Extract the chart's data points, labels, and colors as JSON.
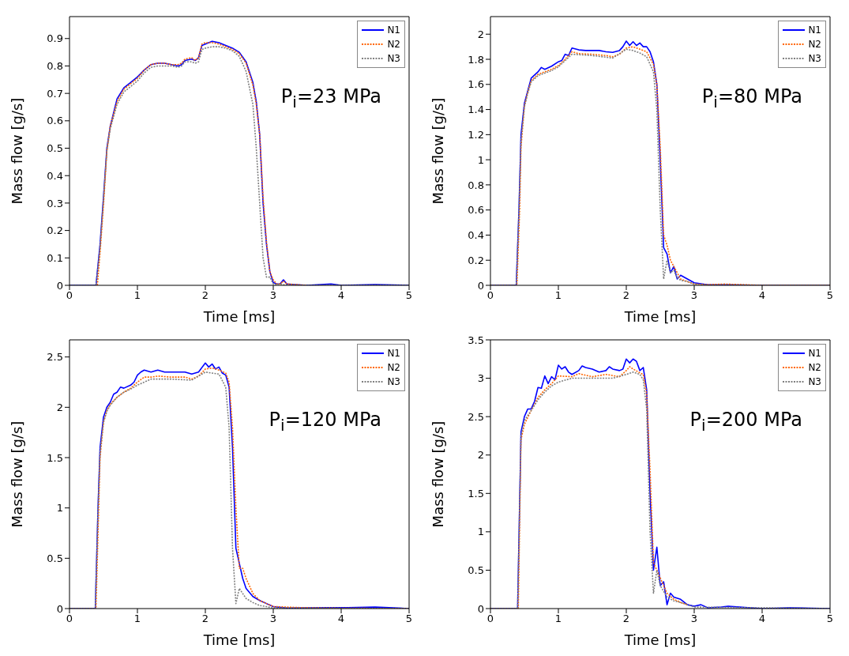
{
  "chart_data": [
    {
      "type": "line",
      "xlabel": "Time [ms]",
      "ylabel": "Mass flow [g/s]",
      "xlim": [
        0,
        5
      ],
      "ylim": [
        0,
        0.98
      ],
      "xticks": [
        0,
        1,
        2,
        3,
        4,
        5
      ],
      "yticks": [
        0,
        0.1,
        0.2,
        0.3,
        0.4,
        0.5,
        0.6,
        0.7,
        0.8,
        0.9
      ],
      "legend": "top right",
      "annotations": [
        "P$_{i}$=23 MPa"
      ],
      "series": [
        {
          "name": "N1",
          "color": "#0000ff",
          "line_style": "solid",
          "x": [
            0,
            0.39,
            0.45,
            0.5,
            0.55,
            0.6,
            0.7,
            0.8,
            0.9,
            1.0,
            1.1,
            1.2,
            1.3,
            1.4,
            1.5,
            1.6,
            1.65,
            1.7,
            1.8,
            1.85,
            1.9,
            1.95,
            2.0,
            2.1,
            2.2,
            2.3,
            2.4,
            2.5,
            2.6,
            2.7,
            2.75,
            2.8,
            2.85,
            2.9,
            2.95,
            3.0,
            3.05,
            3.1,
            3.15,
            3.2,
            3.3,
            3.5,
            3.85,
            4.0,
            4.5,
            5.0
          ],
          "values": [
            0,
            0,
            0.15,
            0.32,
            0.5,
            0.58,
            0.68,
            0.72,
            0.74,
            0.76,
            0.785,
            0.805,
            0.81,
            0.81,
            0.805,
            0.8,
            0.805,
            0.82,
            0.825,
            0.82,
            0.83,
            0.875,
            0.88,
            0.89,
            0.885,
            0.875,
            0.865,
            0.85,
            0.815,
            0.74,
            0.67,
            0.55,
            0.3,
            0.15,
            0.05,
            0.01,
            0.005,
            0.005,
            0.02,
            0.005,
            0.003,
            0,
            0.005,
            0,
            0.003,
            0
          ]
        },
        {
          "name": "N2",
          "color": "#ff6600",
          "line_style": "dotted",
          "x": [
            0.41,
            0.45,
            0.5,
            0.55,
            0.6,
            0.7,
            0.8,
            0.9,
            1.0,
            1.1,
            1.2,
            1.3,
            1.4,
            1.5,
            1.6,
            1.65,
            1.7,
            1.8,
            1.85,
            1.9,
            1.95,
            2.0,
            2.1,
            2.2,
            2.3,
            2.4,
            2.5,
            2.6,
            2.7,
            2.75,
            2.8,
            2.85,
            2.9,
            2.95,
            3.0,
            3.05,
            3.1,
            3.15,
            3.2,
            3.3,
            3.5
          ],
          "values": [
            0,
            0.12,
            0.29,
            0.49,
            0.58,
            0.67,
            0.715,
            0.735,
            0.755,
            0.785,
            0.805,
            0.81,
            0.81,
            0.805,
            0.805,
            0.81,
            0.825,
            0.83,
            0.82,
            0.83,
            0.88,
            0.885,
            0.885,
            0.88,
            0.87,
            0.86,
            0.845,
            0.81,
            0.73,
            0.66,
            0.55,
            0.32,
            0.16,
            0.05,
            0.02,
            0.005,
            0.005,
            0.015,
            0.005,
            0.003,
            0
          ]
        },
        {
          "name": "N3",
          "color": "#808080",
          "line_style": "dotted",
          "x": [
            0,
            0.39,
            0.45,
            0.5,
            0.55,
            0.6,
            0.7,
            0.8,
            0.9,
            1.0,
            1.1,
            1.2,
            1.3,
            1.4,
            1.5,
            1.6,
            1.65,
            1.7,
            1.8,
            1.85,
            1.9,
            1.95,
            2.0,
            2.1,
            2.2,
            2.3,
            2.4,
            2.5,
            2.6,
            2.7,
            2.75,
            2.8,
            2.85,
            2.9,
            2.95,
            3.0,
            3.05,
            3.1,
            3.2,
            3.5,
            4.0,
            5.0
          ],
          "values": [
            0,
            0,
            0.14,
            0.31,
            0.49,
            0.57,
            0.66,
            0.705,
            0.725,
            0.745,
            0.775,
            0.795,
            0.8,
            0.8,
            0.8,
            0.795,
            0.8,
            0.815,
            0.815,
            0.81,
            0.815,
            0.86,
            0.865,
            0.87,
            0.87,
            0.865,
            0.855,
            0.835,
            0.78,
            0.66,
            0.5,
            0.3,
            0.1,
            0.03,
            0.03,
            0.005,
            0.002,
            0.005,
            0,
            0,
            0,
            0
          ]
        }
      ]
    },
    {
      "type": "line",
      "xlabel": "Time [ms]",
      "ylabel": "Mass flow [g/s]",
      "xlim": [
        0,
        5
      ],
      "ylim": [
        0,
        2.14
      ],
      "xticks": [
        0,
        1,
        2,
        3,
        4,
        5
      ],
      "yticks": [
        0,
        0.2,
        0.4,
        0.6,
        0.8,
        1,
        1.2,
        1.4,
        1.6,
        1.8,
        2
      ],
      "legend": "top right",
      "annotations": [
        "P$_{i}$=80 MPa"
      ],
      "series": [
        {
          "name": "N1",
          "color": "#0000ff",
          "line_style": "solid",
          "x": [
            0,
            0.38,
            0.42,
            0.45,
            0.5,
            0.55,
            0.6,
            0.7,
            0.75,
            0.8,
            0.9,
            1.0,
            1.05,
            1.1,
            1.15,
            1.2,
            1.3,
            1.4,
            1.5,
            1.6,
            1.7,
            1.8,
            1.9,
            1.95,
            2.0,
            2.05,
            2.1,
            2.15,
            2.2,
            2.25,
            2.3,
            2.35,
            2.4,
            2.45,
            2.5,
            2.55,
            2.6,
            2.65,
            2.7,
            2.75,
            2.8,
            2.9,
            3.0,
            3.2,
            3.5,
            4.0,
            5.0
          ],
          "values": [
            0,
            0,
            0.6,
            1.2,
            1.45,
            1.55,
            1.65,
            1.7,
            1.735,
            1.72,
            1.745,
            1.78,
            1.79,
            1.84,
            1.83,
            1.89,
            1.875,
            1.87,
            1.87,
            1.87,
            1.86,
            1.855,
            1.87,
            1.9,
            1.945,
            1.91,
            1.94,
            1.91,
            1.93,
            1.9,
            1.9,
            1.86,
            1.78,
            1.6,
            1.0,
            0.3,
            0.25,
            0.1,
            0.15,
            0.05,
            0.08,
            0.05,
            0.02,
            0.005,
            0.005,
            0,
            0
          ]
        },
        {
          "name": "N2",
          "color": "#ff6600",
          "line_style": "dotted",
          "x": [
            0,
            0.39,
            0.43,
            0.45,
            0.5,
            0.55,
            0.6,
            0.7,
            0.8,
            0.9,
            1.0,
            1.1,
            1.2,
            1.3,
            1.5,
            1.7,
            1.8,
            1.9,
            2.0,
            2.1,
            2.2,
            2.3,
            2.4,
            2.45,
            2.5,
            2.55,
            2.6,
            2.65,
            2.7,
            2.75,
            2.8,
            2.9,
            3.0,
            3.2,
            3.45,
            4.0,
            5.0
          ],
          "values": [
            0,
            0,
            0.6,
            1.1,
            1.43,
            1.54,
            1.63,
            1.68,
            1.7,
            1.72,
            1.75,
            1.8,
            1.86,
            1.845,
            1.84,
            1.83,
            1.82,
            1.84,
            1.89,
            1.9,
            1.88,
            1.86,
            1.76,
            1.6,
            1.1,
            0.4,
            0.32,
            0.2,
            0.15,
            0.1,
            0.05,
            0.03,
            0.01,
            0.005,
            0.01,
            0,
            0
          ]
        },
        {
          "name": "N3",
          "color": "#808080",
          "line_style": "dotted",
          "x": [
            0,
            0.38,
            0.42,
            0.45,
            0.5,
            0.55,
            0.6,
            0.7,
            0.8,
            0.9,
            1.0,
            1.2,
            1.5,
            1.8,
            2.0,
            2.1,
            2.2,
            2.3,
            2.4,
            2.45,
            2.5,
            2.55,
            2.6,
            2.65,
            2.7,
            2.75,
            2.8,
            2.9,
            3.0,
            3.2,
            4.0,
            5.0
          ],
          "values": [
            0,
            0,
            0.6,
            1.15,
            1.42,
            1.53,
            1.62,
            1.67,
            1.69,
            1.71,
            1.74,
            1.84,
            1.83,
            1.81,
            1.88,
            1.87,
            1.85,
            1.82,
            1.7,
            1.4,
            0.6,
            0.05,
            0.2,
            0.1,
            0.12,
            0.06,
            0.04,
            0.03,
            0.01,
            0,
            0,
            0
          ]
        }
      ]
    },
    {
      "type": "line",
      "xlabel": "Time [ms]",
      "ylabel": "Mass flow [g/s]",
      "xlim": [
        0,
        5
      ],
      "ylim": [
        0,
        2.67
      ],
      "xticks": [
        0,
        1,
        2,
        3,
        4,
        5
      ],
      "yticks": [
        0,
        0.5,
        1,
        1.5,
        2,
        2.5
      ],
      "legend": "top right",
      "annotations": [
        "P$_{i}$=120 MPa"
      ],
      "series": [
        {
          "name": "N1",
          "color": "#0000ff",
          "line_style": "solid",
          "x": [
            0,
            0.38,
            0.42,
            0.45,
            0.5,
            0.55,
            0.6,
            0.65,
            0.7,
            0.75,
            0.8,
            0.9,
            0.95,
            1.0,
            1.05,
            1.1,
            1.2,
            1.3,
            1.4,
            1.5,
            1.6,
            1.7,
            1.8,
            1.9,
            2.0,
            2.05,
            2.1,
            2.15,
            2.2,
            2.25,
            2.3,
            2.35,
            2.4,
            2.45,
            2.5,
            2.55,
            2.6,
            2.7,
            2.8,
            2.9,
            3.0,
            3.2,
            3.8,
            4.1,
            4.5,
            5.0
          ],
          "values": [
            0,
            0,
            1.0,
            1.6,
            1.9,
            2.0,
            2.05,
            2.13,
            2.15,
            2.2,
            2.19,
            2.22,
            2.25,
            2.32,
            2.35,
            2.37,
            2.35,
            2.37,
            2.35,
            2.35,
            2.35,
            2.35,
            2.33,
            2.35,
            2.44,
            2.4,
            2.43,
            2.38,
            2.4,
            2.34,
            2.32,
            2.2,
            1.6,
            0.6,
            0.45,
            0.3,
            0.2,
            0.12,
            0.08,
            0.05,
            0.02,
            0.005,
            0.01,
            0.01,
            0.015,
            0
          ]
        },
        {
          "name": "N2",
          "color": "#ff6600",
          "line_style": "dotted",
          "x": [
            0,
            0.39,
            0.43,
            0.45,
            0.5,
            0.55,
            0.6,
            0.7,
            0.8,
            0.9,
            1.0,
            1.1,
            1.2,
            1.3,
            1.5,
            1.7,
            1.8,
            1.9,
            2.0,
            2.1,
            2.2,
            2.3,
            2.35,
            2.4,
            2.45,
            2.5,
            2.55,
            2.6,
            2.7,
            2.8,
            2.9,
            3.0,
            3.4,
            3.8,
            5.0
          ],
          "values": [
            0,
            0,
            1.0,
            1.5,
            1.85,
            1.97,
            2.03,
            2.1,
            2.15,
            2.19,
            2.25,
            2.3,
            2.3,
            2.31,
            2.3,
            2.3,
            2.28,
            2.31,
            2.38,
            2.39,
            2.37,
            2.34,
            2.25,
            1.8,
            1.0,
            0.4,
            0.4,
            0.3,
            0.15,
            0.08,
            0.05,
            0.02,
            0.01,
            0.005,
            0
          ]
        },
        {
          "name": "N3",
          "color": "#808080",
          "line_style": "dotted",
          "x": [
            0,
            0.38,
            0.42,
            0.45,
            0.5,
            0.55,
            0.6,
            0.7,
            0.8,
            0.9,
            1.0,
            1.2,
            1.5,
            1.8,
            2.0,
            2.2,
            2.3,
            2.35,
            2.4,
            2.45,
            2.5,
            2.55,
            2.6,
            2.7,
            2.8,
            2.9,
            3.0,
            5.0
          ],
          "values": [
            0,
            0,
            1.0,
            1.55,
            1.85,
            1.96,
            2.02,
            2.1,
            2.15,
            2.18,
            2.22,
            2.28,
            2.28,
            2.27,
            2.35,
            2.33,
            2.2,
            1.8,
            0.6,
            0.05,
            0.2,
            0.15,
            0.1,
            0.06,
            0.03,
            0.02,
            0.005,
            0
          ]
        }
      ]
    },
    {
      "type": "line",
      "xlabel": "Time [ms]",
      "ylabel": "Mass flow [g/s]",
      "xlim": [
        0,
        5
      ],
      "ylim": [
        0,
        3.5
      ],
      "xticks": [
        0,
        1,
        2,
        3,
        4,
        5
      ],
      "yticks": [
        0,
        0.5,
        1,
        1.5,
        2,
        2.5,
        3,
        3.5
      ],
      "legend": "top right",
      "annotations": [
        "P$_{i}$=200 MPa"
      ],
      "series": [
        {
          "name": "N1",
          "color": "#0000ff",
          "line_style": "solid",
          "x": [
            0,
            0.4,
            0.45,
            0.5,
            0.55,
            0.6,
            0.65,
            0.7,
            0.75,
            0.8,
            0.85,
            0.9,
            0.95,
            1.0,
            1.05,
            1.1,
            1.15,
            1.2,
            1.3,
            1.35,
            1.4,
            1.5,
            1.6,
            1.7,
            1.75,
            1.8,
            1.9,
            1.95,
            2.0,
            2.05,
            2.1,
            2.15,
            2.2,
            2.25,
            2.3,
            2.35,
            2.4,
            2.45,
            2.5,
            2.55,
            2.6,
            2.65,
            2.7,
            2.8,
            2.9,
            3.0,
            3.1,
            3.2,
            3.4,
            3.5,
            4.0,
            4.4,
            5.0
          ],
          "values": [
            0,
            0,
            2.3,
            2.5,
            2.6,
            2.6,
            2.7,
            2.88,
            2.87,
            3.03,
            2.93,
            3.02,
            2.98,
            3.17,
            3.12,
            3.15,
            3.08,
            3.05,
            3.1,
            3.16,
            3.14,
            3.12,
            3.08,
            3.1,
            3.15,
            3.12,
            3.1,
            3.12,
            3.25,
            3.2,
            3.25,
            3.22,
            3.1,
            3.14,
            2.85,
            1.5,
            0.5,
            0.8,
            0.3,
            0.35,
            0.05,
            0.2,
            0.15,
            0.12,
            0.05,
            0.03,
            0.05,
            0.01,
            0.02,
            0.03,
            0,
            0.01,
            0
          ]
        },
        {
          "name": "N2",
          "color": "#ff6600",
          "line_style": "dotted",
          "x": [
            0,
            0.41,
            0.45,
            0.5,
            0.6,
            0.7,
            0.8,
            0.9,
            1.0,
            1.2,
            1.3,
            1.5,
            1.7,
            1.9,
            2.0,
            2.05,
            2.1,
            2.2,
            2.25,
            2.3,
            2.35,
            2.4,
            2.45,
            2.5,
            2.6,
            2.7,
            2.8,
            2.9
          ],
          "values": [
            0,
            0,
            2.2,
            2.4,
            2.58,
            2.75,
            2.85,
            2.93,
            3.03,
            3.02,
            3.06,
            3.02,
            3.05,
            3.02,
            3.1,
            3.15,
            3.12,
            3.07,
            3.05,
            2.8,
            1.8,
            0.6,
            0.5,
            0.4,
            0.2,
            0.12,
            0.08,
            0.05
          ]
        },
        {
          "name": "N3",
          "color": "#808080",
          "line_style": "dotted",
          "x": [
            0,
            0.4,
            0.45,
            0.5,
            0.6,
            0.7,
            0.8,
            0.9,
            1.0,
            1.2,
            1.5,
            1.8,
            2.0,
            2.1,
            2.2,
            2.25,
            2.3,
            2.35,
            2.4,
            2.45,
            2.5,
            2.6,
            2.7,
            2.8,
            2.9,
            3.0,
            5.0
          ],
          "values": [
            0,
            0,
            2.25,
            2.45,
            2.58,
            2.72,
            2.82,
            2.9,
            2.95,
            3.0,
            3.0,
            3.0,
            3.05,
            3.08,
            3.05,
            2.98,
            2.6,
            1.0,
            0.2,
            0.5,
            0.3,
            0.15,
            0.1,
            0.08,
            0.05,
            0.02,
            0
          ]
        }
      ]
    }
  ]
}
